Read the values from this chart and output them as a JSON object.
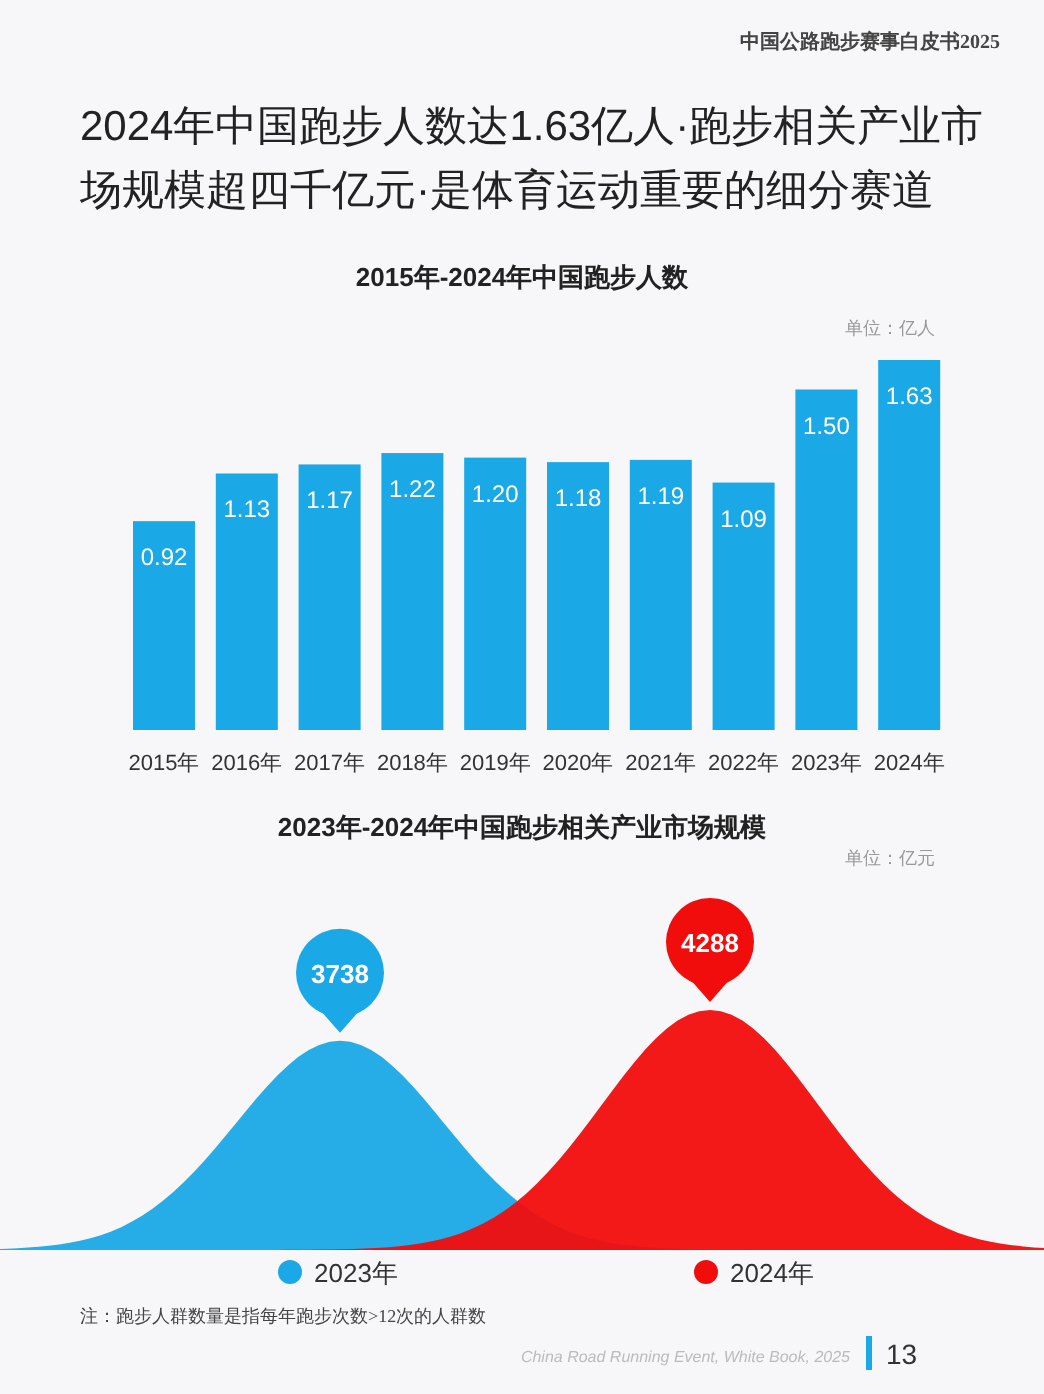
{
  "chart_data": [
    {
      "type": "bar",
      "title": "2015年-2024年中国跑步人数",
      "categories": [
        "2015年",
        "2016年",
        "2017年",
        "2018年",
        "2019年",
        "2020年",
        "2021年",
        "2022年",
        "2023年",
        "2024年"
      ],
      "values": [
        0.92,
        1.13,
        1.17,
        1.22,
        1.2,
        1.18,
        1.19,
        1.09,
        1.5,
        1.63
      ],
      "color": "#1aa9e6",
      "value_labels": [
        "0.92",
        "1.13",
        "1.17",
        "1.22",
        "1.20",
        "1.18",
        "1.19",
        "1.09",
        "1.50",
        "1.63"
      ],
      "annotations": [
        "中国公路跑步赛事白皮书2025",
        "2024年中国跑步人数达1.63亿人·跑步相关产业市场规模超四千亿元·是体育运动重要的细分赛道",
        "单位：亿人"
      ]
    },
    {
      "type": "other",
      "title": "2023年-2024年中国跑步相关产业市场规模",
      "categories": [
        "2023年",
        "2024年"
      ],
      "values": [
        3738,
        4288
      ],
      "colors": [
        "#1aa9e6",
        "#f20d0d"
      ],
      "data_labels": true,
      "annotations": [
        "单位：亿元",
        "注：跑步人群数量是指每年跑步次数>12次的人群数",
        "China Road Running Event, White Book, 2025",
        "13"
      ]
    }
  ]
}
